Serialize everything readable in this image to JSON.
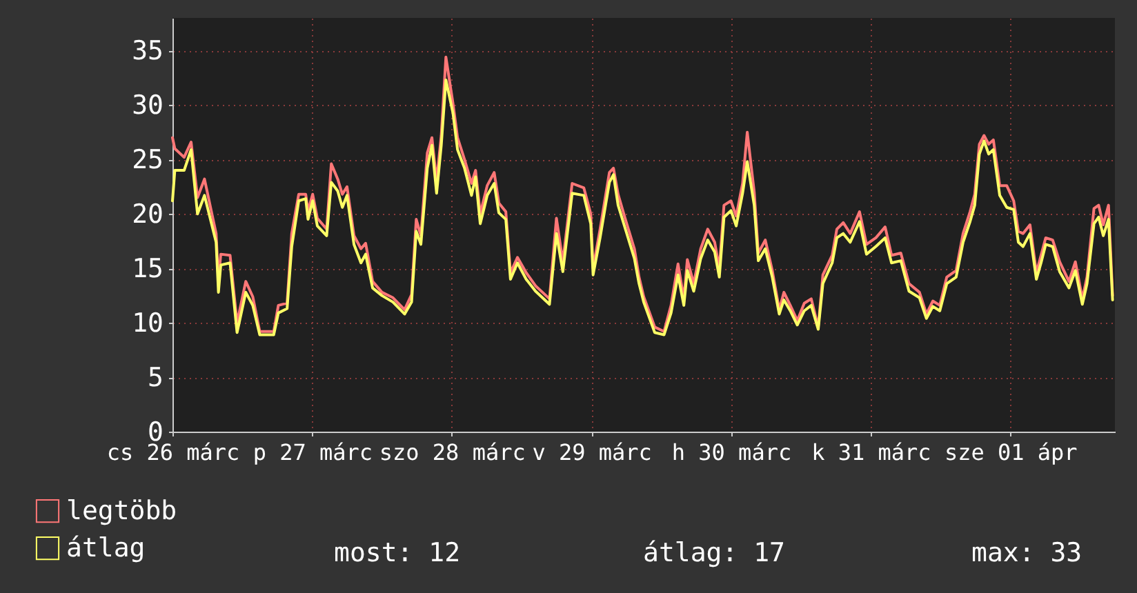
{
  "chart_data": {
    "type": "line",
    "x": [
      "--03-26T00:00",
      "--03-26T00:24",
      "--03-26T02:00",
      "--03-26T03:12",
      "--03-26T04:18",
      "--03-26T05:30",
      "--03-26T07:30",
      "--03-26T07:54",
      "--03-26T08:18",
      "--03-26T09:54",
      "--03-26T11:06",
      "--03-26T12:36",
      "--03-26T13:48",
      "--03-26T15:00",
      "--03-26T17:24",
      "--03-26T18:12",
      "--03-26T19:42",
      "--03-26T20:30",
      "--03-26T21:42",
      "--03-26T22:54",
      "--03-26T23:18",
      "--03-27T00:06",
      "--03-27T00:54",
      "--03-27T02:30",
      "--03-27T03:18",
      "--03-27T04:24",
      "--03-27T05:12",
      "--03-27T06:00",
      "--03-27T07:12",
      "--03-27T08:24",
      "--03-27T09:12",
      "--03-27T10:24",
      "--03-27T12:00",
      "--03-27T13:54",
      "--03-27T15:54",
      "--03-27T17:06",
      "--03-27T17:54",
      "--03-27T18:42",
      "--03-27T19:48",
      "--03-27T20:36",
      "--03-27T21:24",
      "--03-27T22:12",
      "--03-27T23:00",
      "--03-28T00:12",
      "--03-28T01:00",
      "--03-28T02:12",
      "--03-28T03:24",
      "--03-28T04:06",
      "--03-28T04:54",
      "--03-28T06:06",
      "--03-28T07:18",
      "--03-28T08:06",
      "--03-28T09:18",
      "--03-28T10:06",
      "--03-28T11:18",
      "--03-28T12:48",
      "--03-28T14:24",
      "--03-28T15:36",
      "--03-28T16:48",
      "--03-28T18:00",
      "--03-28T19:06",
      "--03-28T20:42",
      "--03-28T22:42",
      "--03-28T23:54",
      "--03-29T00:18",
      "--03-29T01:30",
      "--03-29T03:06",
      "--03-29T03:48",
      "--03-29T04:36",
      "--03-29T05:48",
      "--03-29T07:24",
      "--03-29T08:12",
      "--03-29T09:00",
      "--03-29T10:54",
      "--03-29T12:30",
      "--03-29T13:42",
      "--03-29T14:54",
      "--03-29T15:54",
      "--03-29T16:30",
      "--03-29T17:36",
      "--03-29T18:48",
      "--03-29T20:00",
      "--03-29T21:12",
      "--03-29T22:00",
      "--03-29T22:48",
      "--03-30T00:00",
      "--03-30T00:54",
      "--03-30T02:00",
      "--03-30T02:48",
      "--03-30T04:00",
      "--03-30T04:42",
      "--03-30T05:54",
      "--03-30T07:06",
      "--03-30T08:18",
      "--03-30T09:06",
      "--03-30T10:12",
      "--03-30T11:24",
      "--03-30T12:36",
      "--03-30T13:48",
      "--03-30T15:00",
      "--03-30T15:48",
      "--03-30T17:24",
      "--03-30T18:12",
      "--03-30T19:18",
      "--03-30T20:30",
      "--03-30T22:06",
      "--03-30T23:18",
      "--03-31T00:54",
      "--03-31T02:30",
      "--03-31T03:36",
      "--03-31T05:12",
      "--03-31T06:36",
      "--03-31T08:24",
      "--03-31T09:36",
      "--03-31T10:42",
      "--03-31T11:54",
      "--03-31T13:06",
      "--03-31T14:42",
      "--03-31T15:54",
      "--03-31T17:06",
      "--03-31T17:54",
      "--03-31T18:42",
      "--03-31T19:30",
      "--03-31T20:18",
      "--03-31T21:06",
      "--03-31T22:12",
      "--03-31T23:24",
      "--04-01T00:36",
      "--04-01T01:24",
      "--04-01T02:12",
      "--04-01T03:24",
      "--04-01T04:30",
      "--04-01T05:18",
      "--04-01T06:06",
      "--04-01T07:18",
      "--04-01T08:30",
      "--04-01T10:06",
      "--04-01T11:12",
      "--04-01T12:24",
      "--04-01T13:12",
      "--04-01T14:24",
      "--04-01T15:12",
      "--04-01T16:00",
      "--04-01T16:54",
      "--04-01T17:36"
    ],
    "series": [
      {
        "name": "legtöbb",
        "color": "#ff7777",
        "values": [
          27.0,
          26.0,
          25.2,
          26.6,
          21.5,
          23.2,
          18.2,
          13.8,
          16.3,
          16.2,
          10.0,
          13.8,
          12.4,
          9.2,
          9.2,
          11.6,
          11.8,
          18.2,
          21.8,
          21.8,
          20.3,
          21.8,
          19.6,
          18.6,
          24.6,
          23.2,
          21.8,
          22.5,
          18.0,
          16.8,
          17.3,
          13.8,
          12.8,
          12.3,
          11.2,
          12.6,
          19.5,
          18.0,
          25.6,
          27.0,
          23.0,
          27.2,
          34.4,
          30.2,
          27.0,
          25.0,
          22.8,
          24.0,
          20.0,
          22.6,
          23.8,
          21.0,
          20.2,
          14.6,
          16.0,
          14.6,
          13.4,
          12.8,
          12.2,
          19.6,
          15.6,
          22.8,
          22.4,
          20.0,
          15.0,
          18.6,
          23.8,
          24.2,
          21.8,
          19.6,
          16.8,
          14.2,
          12.4,
          9.6,
          9.2,
          11.6,
          15.4,
          12.2,
          15.8,
          13.6,
          16.8,
          18.6,
          17.4,
          15.0,
          20.8,
          21.2,
          19.8,
          22.8,
          27.5,
          22.0,
          16.4,
          17.6,
          14.8,
          11.2,
          12.8,
          11.6,
          10.2,
          11.8,
          12.2,
          9.6,
          14.4,
          16.2,
          18.6,
          19.2,
          18.2,
          20.2,
          17.2,
          17.8,
          18.8,
          16.2,
          16.4,
          13.6,
          12.8,
          10.8,
          12.0,
          11.6,
          14.2,
          14.8,
          18.2,
          20.2,
          21.8,
          26.4,
          27.2,
          26.4,
          26.8,
          22.6,
          22.6,
          21.2,
          18.4,
          18.2,
          19.0,
          14.6,
          16.2,
          17.8,
          17.6,
          15.6,
          13.8,
          15.6,
          12.2,
          14.2,
          20.5,
          20.8,
          19.0,
          20.8,
          12.5
        ]
      },
      {
        "name": "átlag",
        "color": "#ffff66",
        "values": [
          21.2,
          24.0,
          24.0,
          25.9,
          20.0,
          21.7,
          17.4,
          12.8,
          15.3,
          15.5,
          9.1,
          12.8,
          11.6,
          8.9,
          8.9,
          10.9,
          11.3,
          17.0,
          21.2,
          21.4,
          19.5,
          21.2,
          18.9,
          18.0,
          22.9,
          22.1,
          20.6,
          21.7,
          17.2,
          15.5,
          16.3,
          13.2,
          12.5,
          11.9,
          10.8,
          11.9,
          18.4,
          17.2,
          24.2,
          26.3,
          21.9,
          26.3,
          32.3,
          29.3,
          25.9,
          24.2,
          21.7,
          23.4,
          19.1,
          21.7,
          22.8,
          20.1,
          19.5,
          14.0,
          15.5,
          14.0,
          12.9,
          12.3,
          11.7,
          18.2,
          14.7,
          21.9,
          21.7,
          19.1,
          14.4,
          17.8,
          22.9,
          23.6,
          20.8,
          18.7,
          15.9,
          13.6,
          11.9,
          9.1,
          8.9,
          10.9,
          14.4,
          11.6,
          14.8,
          12.9,
          15.9,
          17.6,
          16.5,
          14.2,
          19.7,
          20.3,
          18.9,
          21.9,
          24.8,
          20.8,
          15.7,
          16.8,
          14.2,
          10.8,
          12.1,
          11.1,
          9.8,
          11.1,
          11.6,
          9.4,
          13.6,
          15.5,
          17.8,
          18.2,
          17.4,
          19.3,
          16.3,
          17.0,
          17.8,
          15.5,
          15.7,
          12.9,
          12.3,
          10.4,
          11.5,
          11.1,
          13.6,
          14.2,
          17.4,
          19.3,
          20.8,
          25.5,
          26.7,
          25.5,
          25.9,
          21.7,
          20.6,
          20.4,
          17.4,
          17.0,
          18.2,
          14.0,
          15.5,
          17.2,
          17.0,
          14.7,
          13.2,
          14.8,
          11.7,
          13.6,
          19.1,
          19.7,
          18.0,
          19.5,
          12.1
        ]
      }
    ],
    "xlim": [
      "--03-26T00:00",
      "--04-01T18:00"
    ],
    "xticks": [
      {
        "value": "--03-26",
        "label": "cs 26 márc"
      },
      {
        "value": "--03-27",
        "label": "p 27 márc"
      },
      {
        "value": "--03-28",
        "label": "szo 28 márc"
      },
      {
        "value": "--03-29",
        "label": "v 29 márc"
      },
      {
        "value": "--03-30",
        "label": "h 30 márc"
      },
      {
        "value": "--03-31",
        "label": "k 31 márc"
      },
      {
        "value": "--04-01",
        "label": "sze 01 ápr"
      }
    ],
    "ylim": [
      0,
      38
    ],
    "yticks": [
      0,
      5,
      10,
      15,
      20,
      25,
      30,
      35
    ],
    "grid": true,
    "legend": "bottom",
    "line_style": "solid",
    "marker": "none",
    "annotations": [
      "most: 12",
      "átlag: 17",
      "max: 33"
    ]
  }
}
